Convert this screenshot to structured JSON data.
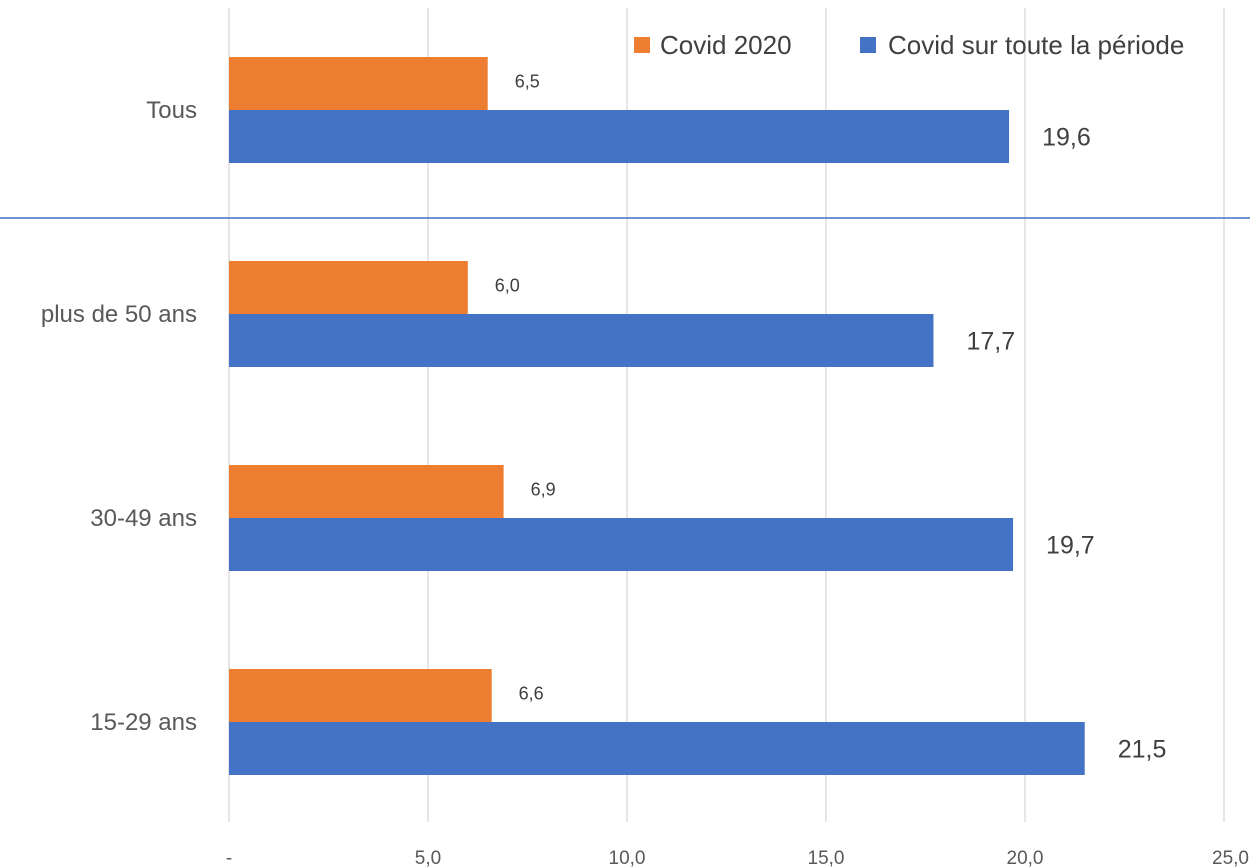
{
  "chart_data": {
    "type": "bar",
    "orientation": "horizontal",
    "categories": [
      "Tous",
      "plus de 50 ans",
      "30-49 ans",
      "15-29 ans"
    ],
    "series": [
      {
        "name": "Covid 2020",
        "color": "#ED7D31",
        "values": [
          6.5,
          6.0,
          6.9,
          6.6
        ],
        "labels": [
          "6,5",
          "6,0",
          "6,9",
          "6,6"
        ]
      },
      {
        "name": "Covid sur toute la période",
        "color": "#4472C4",
        "values": [
          19.6,
          17.7,
          19.7,
          21.5
        ],
        "labels": [
          "19,6",
          "17,7",
          "19,7",
          "21,5"
        ]
      }
    ],
    "xlim": [
      0,
      25
    ],
    "xticks": [
      0,
      5,
      10,
      15,
      20,
      25
    ],
    "xtick_labels": [
      "-",
      "5,0",
      "10,0",
      "15,0",
      "20,0",
      "25,0"
    ],
    "grid": true,
    "legend_position": "top-right",
    "separator_after_category": "Tous",
    "separator_color": "#4472C4"
  }
}
